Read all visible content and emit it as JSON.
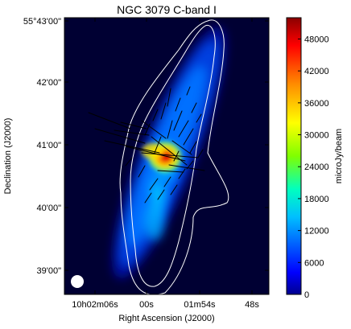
{
  "chart_data": {
    "type": "heatmap",
    "title": "NGC 3079   C-band   I",
    "xlabel": "Right Ascension (J2000)",
    "ylabel": "Declination (J2000)",
    "x_ticks": [
      "10h02m06s",
      "00s",
      "01m54s",
      "48s"
    ],
    "y_ticks": [
      "55°43'00\"",
      "42'00\"",
      "41'00\"",
      "40'00\"",
      "39'00\""
    ],
    "colorbar": {
      "label": "microJy/beam",
      "ticks": [
        0,
        6000,
        12000,
        18000,
        24000,
        30000,
        36000,
        42000,
        48000
      ],
      "range": [
        0,
        52000
      ],
      "colormap": [
        "#00008f",
        "#0000ff",
        "#00bfff",
        "#00ffbf",
        "#7fff00",
        "#ffff00",
        "#ff8c00",
        "#ff0000",
        "#8b0000"
      ]
    },
    "background_color": "#000033",
    "contour_color": "#ffffff",
    "vector_color": "#000000",
    "beam": "filled-white-circle-bottom-left"
  }
}
